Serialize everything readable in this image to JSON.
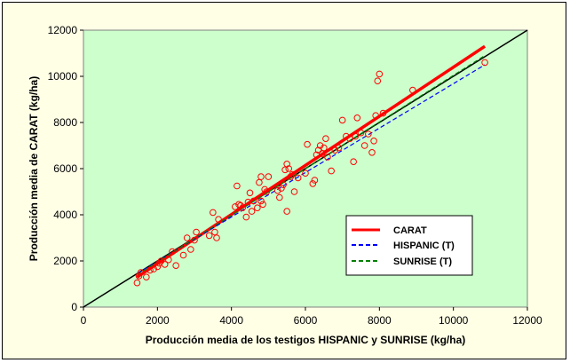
{
  "chart_data": {
    "type": "scatter",
    "xlabel": "Producción media de los testigos HISPANIC y SUNRISE (kg/ha)",
    "ylabel": "Producción media de CARAT (kg/ha)",
    "xlim": [
      0,
      12000
    ],
    "ylim": [
      0,
      12000
    ],
    "x_ticks": [
      "0",
      "2000",
      "4000",
      "6000",
      "8000",
      "10000",
      "12000"
    ],
    "y_ticks": [
      "0",
      "2000",
      "4000",
      "6000",
      "8000",
      "10000",
      "12000"
    ],
    "grid": false,
    "legend_position": "bottom-right",
    "colors": {
      "plot_background": "#ccffcc",
      "chart_background": "#ffffe6",
      "points": "#ff0000",
      "carat": "#ff0000",
      "hispanic": "#0000ff",
      "sunrise": "#008000",
      "identity": "#000000"
    },
    "points": [
      [
        1450,
        1050
      ],
      [
        1500,
        1350
      ],
      [
        1550,
        1500
      ],
      [
        1700,
        1300
      ],
      [
        1800,
        1600
      ],
      [
        1900,
        1650
      ],
      [
        2000,
        1750
      ],
      [
        2050,
        1900
      ],
      [
        2100,
        2000
      ],
      [
        2200,
        1850
      ],
      [
        2300,
        2050
      ],
      [
        2400,
        2400
      ],
      [
        2500,
        1800
      ],
      [
        2700,
        2250
      ],
      [
        2800,
        3000
      ],
      [
        2900,
        2500
      ],
      [
        3000,
        2900
      ],
      [
        3050,
        3250
      ],
      [
        3400,
        3100
      ],
      [
        3500,
        4100
      ],
      [
        3550,
        3250
      ],
      [
        3600,
        3000
      ],
      [
        3650,
        3800
      ],
      [
        4100,
        4350
      ],
      [
        4150,
        5250
      ],
      [
        4200,
        4450
      ],
      [
        4250,
        4400
      ],
      [
        4300,
        4300
      ],
      [
        4400,
        3900
      ],
      [
        4450,
        4550
      ],
      [
        4500,
        4950
      ],
      [
        4550,
        4150
      ],
      [
        4600,
        4600
      ],
      [
        4700,
        4300
      ],
      [
        4750,
        5400
      ],
      [
        4800,
        4600
      ],
      [
        4850,
        4450
      ],
      [
        4900,
        5100
      ],
      [
        4950,
        5000
      ],
      [
        5000,
        5650
      ],
      [
        4800,
        5650
      ],
      [
        5250,
        5050
      ],
      [
        5300,
        4750
      ],
      [
        5350,
        5150
      ],
      [
        5400,
        5300
      ],
      [
        5450,
        5950
      ],
      [
        5500,
        6200
      ],
      [
        5550,
        6000
      ],
      [
        5600,
        5650
      ],
      [
        5650,
        5750
      ],
      [
        5500,
        4150
      ],
      [
        5700,
        5000
      ],
      [
        5800,
        5600
      ],
      [
        6000,
        5800
      ],
      [
        6050,
        7050
      ],
      [
        6200,
        5350
      ],
      [
        6250,
        5500
      ],
      [
        6300,
        6600
      ],
      [
        6350,
        6800
      ],
      [
        6400,
        7000
      ],
      [
        6450,
        6650
      ],
      [
        6500,
        6900
      ],
      [
        6550,
        7300
      ],
      [
        6600,
        6500
      ],
      [
        6700,
        5900
      ],
      [
        6800,
        6800
      ],
      [
        6900,
        6900
      ],
      [
        7000,
        8100
      ],
      [
        7100,
        7400
      ],
      [
        7200,
        7300
      ],
      [
        7300,
        6300
      ],
      [
        7350,
        7400
      ],
      [
        7400,
        8200
      ],
      [
        7500,
        7550
      ],
      [
        7600,
        7000
      ],
      [
        7700,
        7500
      ],
      [
        7800,
        6700
      ],
      [
        7850,
        7200
      ],
      [
        7900,
        8300
      ],
      [
        7950,
        9800
      ],
      [
        8000,
        10100
      ],
      [
        8100,
        8400
      ],
      [
        8900,
        9400
      ],
      [
        10850,
        10600
      ]
    ],
    "series": [
      {
        "name": "CARAT",
        "x": [
          1450,
          10850
        ],
        "y": [
          1300,
          11300
        ]
      },
      {
        "name": "HISPANIC (T)",
        "x": [
          1450,
          10850
        ],
        "y": [
          1450,
          10500
        ]
      },
      {
        "name": "SUNRISE (T)",
        "x": [
          1450,
          10850
        ],
        "y": [
          1400,
          10900
        ]
      }
    ],
    "identity_line": {
      "x": [
        0,
        12000
      ],
      "y": [
        0,
        12000
      ]
    }
  }
}
